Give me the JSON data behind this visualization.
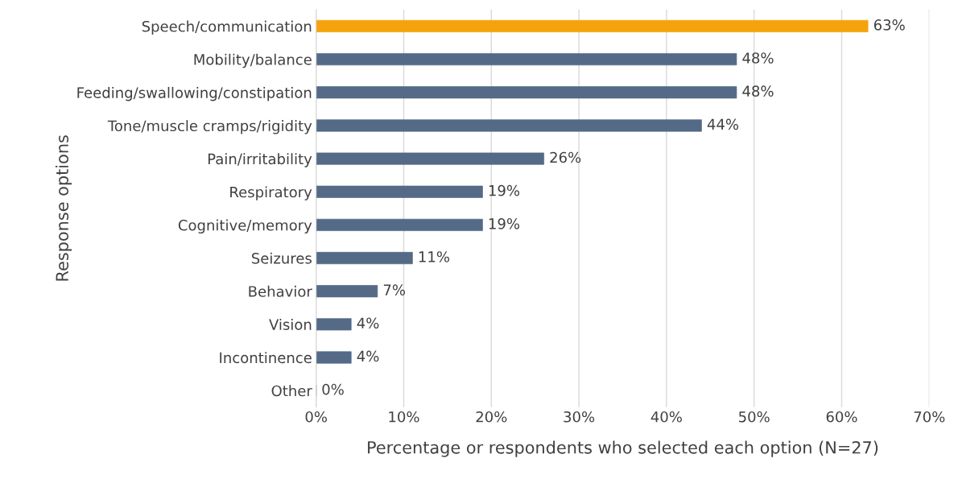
{
  "chart_data": {
    "type": "bar",
    "orientation": "horizontal",
    "categories": [
      "Speech/communication",
      "Mobility/balance",
      "Feeding/swallowing/constipation",
      "Tone/muscle cramps/rigidity",
      "Pain/irritability",
      "Respiratory",
      "Cognitive/memory",
      "Seizures",
      "Behavior",
      "Vision",
      "Incontinence",
      "Other"
    ],
    "values": [
      63,
      48,
      48,
      44,
      26,
      19,
      19,
      11,
      7,
      4,
      4,
      0
    ],
    "colors": [
      "#f5a30c",
      "#546a87",
      "#546a87",
      "#546a87",
      "#546a87",
      "#546a87",
      "#546a87",
      "#546a87",
      "#546a87",
      "#546a87",
      "#546a87",
      "#546a87"
    ],
    "value_labels": [
      "63%",
      "48%",
      "48%",
      "44%",
      "26%",
      "19%",
      "19%",
      "11%",
      "7%",
      "4%",
      "4%",
      "0%"
    ],
    "xlim": [
      0,
      70
    ],
    "xticks": [
      {
        "value": 0,
        "label": "0%"
      },
      {
        "value": 10,
        "label": "10%"
      },
      {
        "value": 20,
        "label": "20%"
      },
      {
        "value": 30,
        "label": "30%"
      },
      {
        "value": 40,
        "label": "40%"
      },
      {
        "value": 50,
        "label": "50%"
      },
      {
        "value": 60,
        "label": "60%"
      },
      {
        "value": 70,
        "label": "70%"
      }
    ],
    "xlabel": "Percentage or respondents who selected each option (N=27)",
    "ylabel": "Response options",
    "grid": "x"
  }
}
